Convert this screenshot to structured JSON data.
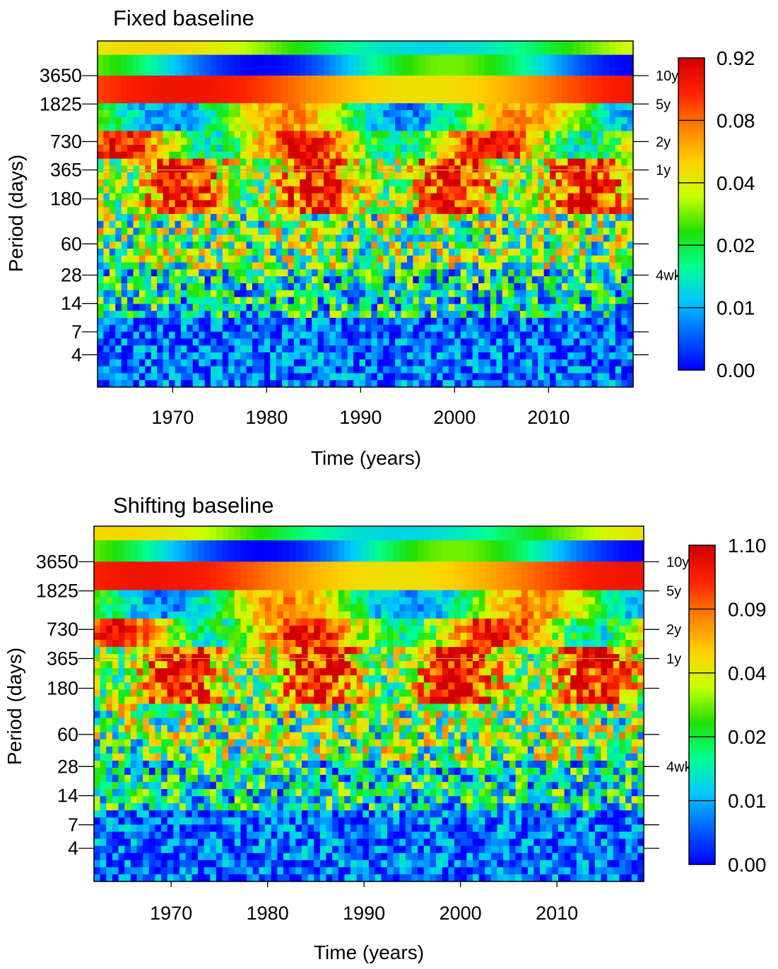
{
  "colors": {
    "scale": [
      "#0000ff",
      "#0060ff",
      "#00c8ff",
      "#00ff90",
      "#20e000",
      "#c8ff00",
      "#ffd000",
      "#ff8000",
      "#ff2000",
      "#d00000"
    ],
    "reference_line": "#c8a060",
    "frame": "#000000"
  },
  "chart_data": [
    {
      "type": "heatmap",
      "title": "Fixed baseline",
      "xlabel": "Time (years)",
      "ylabel": "Period (days)",
      "xlim": [
        1962,
        2019
      ],
      "x_ticks": [
        1970,
        1980,
        1990,
        2000,
        2010
      ],
      "x_tick_labels": [
        "1970",
        "1980",
        "1990",
        "2000",
        "2010"
      ],
      "y_scale": "log",
      "y_ticks": [
        4,
        7,
        14,
        28,
        60,
        180,
        365,
        730,
        1825,
        3650
      ],
      "y_tick_labels": [
        "4",
        "7",
        "14",
        "28",
        "60",
        "180",
        "365",
        "730",
        "1825",
        "3650"
      ],
      "right_ticks": [
        3650,
        1825,
        730,
        365,
        180,
        60,
        28,
        14,
        7,
        4
      ],
      "right_labels": [
        "10y",
        "5y",
        "2y",
        "1y",
        "",
        "",
        "4wk",
        "",
        "",
        ""
      ],
      "reference_line_period": 365,
      "colorbar_labels": [
        "0.92",
        "0.08",
        "0.04",
        "0.02",
        "0.01",
        "0.00"
      ],
      "bands": [
        {
          "period": "10y",
          "level": "high"
        },
        {
          "period": "5y",
          "level": "high"
        },
        {
          "period": "2y",
          "level": "mixed"
        },
        {
          "period": "1y",
          "level": "high"
        },
        {
          "period": "<60 days",
          "level": "low"
        }
      ]
    },
    {
      "type": "heatmap",
      "title": "Shifting baseline",
      "xlabel": "Time (years)",
      "ylabel": "Period (days)",
      "xlim": [
        1962,
        2019
      ],
      "x_ticks": [
        1970,
        1980,
        1990,
        2000,
        2010
      ],
      "x_tick_labels": [
        "1970",
        "1980",
        "1990",
        "2000",
        "2010"
      ],
      "y_scale": "log",
      "y_ticks": [
        4,
        7,
        14,
        28,
        60,
        180,
        365,
        730,
        1825,
        3650
      ],
      "y_tick_labels": [
        "4",
        "7",
        "14",
        "28",
        "60",
        "180",
        "365",
        "730",
        "1825",
        "3650"
      ],
      "right_ticks": [
        3650,
        1825,
        730,
        365,
        180,
        60,
        28,
        14,
        7,
        4
      ],
      "right_labels": [
        "10y",
        "5y",
        "2y",
        "1y",
        "",
        "",
        "4wk",
        "",
        "",
        ""
      ],
      "reference_line_period": 365,
      "colorbar_labels": [
        "1.10",
        "0.09",
        "0.04",
        "0.02",
        "0.01",
        "0.00"
      ],
      "bands": [
        {
          "period": "10y",
          "level": "high"
        },
        {
          "period": "5y",
          "level": "high"
        },
        {
          "period": "2y",
          "level": "mixed"
        },
        {
          "period": "1y",
          "level": "high"
        },
        {
          "period": "<60 days",
          "level": "low"
        }
      ]
    }
  ]
}
